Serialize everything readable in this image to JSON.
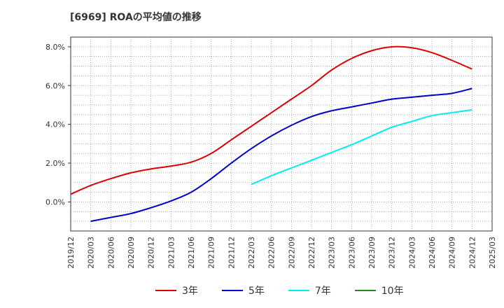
{
  "chart_data": {
    "type": "line",
    "title": "[6969]  ROAの平均値の推移",
    "xlabel": "",
    "ylabel": "",
    "ylim": [
      -1.5,
      8.5
    ],
    "yticks": [
      0,
      2,
      4,
      6,
      8
    ],
    "ytick_labels": [
      "0.0%",
      "2.0%",
      "4.0%",
      "6.0%",
      "8.0%"
    ],
    "grid": true,
    "legend_position": "bottom",
    "x_labels": [
      "2019/12",
      "2020/03",
      "2020/06",
      "2020/09",
      "2020/12",
      "2021/03",
      "2021/06",
      "2021/09",
      "2021/12",
      "2022/03",
      "2022/06",
      "2022/09",
      "2022/12",
      "2023/03",
      "2023/06",
      "2023/09",
      "2023/12",
      "2024/03",
      "2024/06",
      "2024/09",
      "2024/12",
      "2025/03"
    ],
    "series": [
      {
        "name": "3年",
        "color": "#dd0000",
        "values": [
          0.4,
          0.85,
          1.2,
          1.5,
          1.7,
          1.85,
          2.05,
          2.5,
          3.2,
          3.9,
          4.6,
          5.3,
          6.0,
          6.8,
          7.4,
          7.8,
          8.0,
          7.95,
          7.7,
          7.3,
          6.85,
          null
        ]
      },
      {
        "name": "5年",
        "color": "#0000cc",
        "values": [
          null,
          -1.0,
          -0.8,
          -0.6,
          -0.3,
          0.05,
          0.5,
          1.2,
          2.0,
          2.75,
          3.4,
          3.95,
          4.4,
          4.7,
          4.9,
          5.1,
          5.3,
          5.4,
          5.5,
          5.6,
          5.85,
          null
        ]
      },
      {
        "name": "7年",
        "color": "#00eeee",
        "values": [
          null,
          null,
          null,
          null,
          null,
          null,
          null,
          null,
          null,
          0.9,
          1.35,
          1.75,
          2.15,
          2.55,
          2.95,
          3.4,
          3.85,
          4.15,
          4.45,
          4.6,
          4.75,
          null
        ]
      },
      {
        "name": "10年",
        "color": "#228822",
        "values": [
          null,
          null,
          null,
          null,
          null,
          null,
          null,
          null,
          null,
          null,
          null,
          null,
          null,
          null,
          null,
          null,
          null,
          null,
          null,
          null,
          null,
          null
        ]
      }
    ]
  }
}
